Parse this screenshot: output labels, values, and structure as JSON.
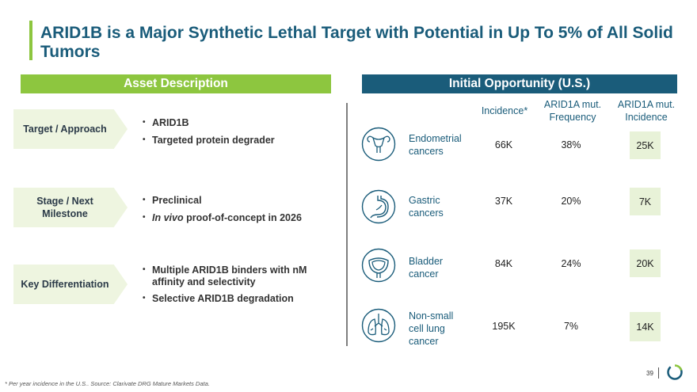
{
  "title": "ARID1B is a Major Synthetic Lethal Target with Potential in Up To 5% of All Solid Tumors",
  "left_header": "Asset Description",
  "right_header": "Initial Opportunity (U.S.)",
  "rows": [
    {
      "label": "Target / Approach",
      "bullets": [
        "ARID1B",
        "Targeted protein degrader"
      ]
    },
    {
      "label": "Stage / Next Milestone",
      "bullets": [
        "Preclinical",
        "In vivo proof-of-concept in 2026"
      ],
      "italic_prefix": "In vivo"
    },
    {
      "label": "Key Differentiation",
      "bullets": [
        "Multiple ARID1B binders with nM affinity and selectivity",
        "Selective ARID1B degradation"
      ]
    }
  ],
  "table": {
    "columns": [
      "Incidence*",
      "ARID1A mut. Frequency",
      "ARID1A mut. Incidence"
    ],
    "cancers": [
      {
        "name": "Endometrial cancers",
        "icon": "uterus-icon",
        "incidence": "66K",
        "frequency": "38%",
        "mut_incidence": "25K"
      },
      {
        "name": "Gastric cancers",
        "icon": "stomach-icon",
        "incidence": "37K",
        "frequency": "20%",
        "mut_incidence": "7K"
      },
      {
        "name": "Bladder cancer",
        "icon": "bladder-icon",
        "incidence": "84K",
        "frequency": "24%",
        "mut_incidence": "20K"
      },
      {
        "name": "Non-small cell lung cancer",
        "icon": "lungs-icon",
        "incidence": "195K",
        "frequency": "7%",
        "mut_incidence": "14K"
      }
    ]
  },
  "footnote": "* Per year incidence in the U.S.. Source: Clarivate DRG Mature Markets Data.",
  "page_number": "39",
  "colors": {
    "green": "#8dc63f",
    "blue": "#1a5c7a",
    "light_green": "#eef5e0"
  }
}
